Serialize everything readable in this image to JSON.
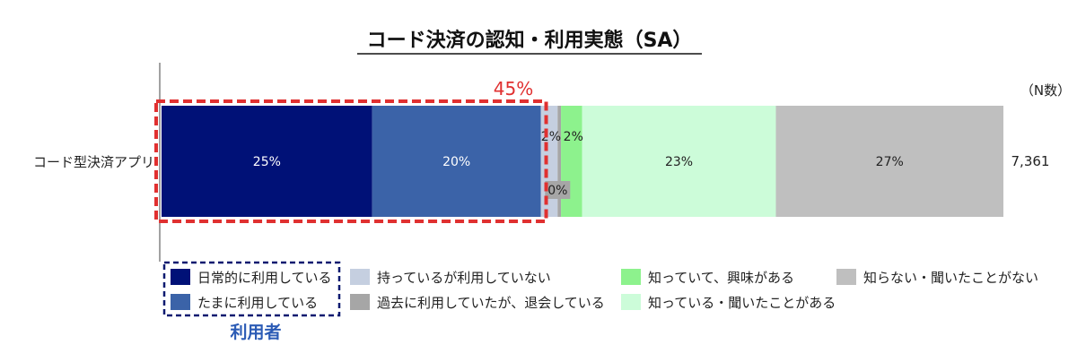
{
  "chart_data": {
    "type": "bar",
    "orientation": "horizontal",
    "stacked": true,
    "title": "コード決済の認知・利用実態（SA）",
    "n_label": "（N数）",
    "categories": [
      "コード型決済アプリ"
    ],
    "n_values": [
      "7,361"
    ],
    "xlim": [
      0,
      100
    ],
    "series": [
      {
        "name": "日常的に利用している",
        "values": [
          25
        ],
        "label": "25%",
        "color": "#001177"
      },
      {
        "name": "たまに利用している",
        "values": [
          20
        ],
        "label": "20%",
        "color": "#3b63a8"
      },
      {
        "name": "持っているが利用していない",
        "values": [
          2
        ],
        "label": "2%",
        "color": "#c5cfe0"
      },
      {
        "name": "過去に利用していたが、退会している",
        "values": [
          0.4
        ],
        "label": "0%",
        "color": "#a6a6a6"
      },
      {
        "name": "知っていて、興味がある",
        "values": [
          2.5
        ],
        "label": "2%",
        "color": "#8df28d"
      },
      {
        "name": "知っている・聞いたことがある",
        "values": [
          23
        ],
        "label": "23%",
        "color": "#ccfcd9"
      },
      {
        "name": "知らない・聞いたことがない",
        "values": [
          27
        ],
        "label": "27%",
        "color": "#bfbfbf"
      }
    ],
    "highlight": {
      "label": "45%",
      "group_label": "利用者",
      "series": [
        0,
        1
      ]
    },
    "grid": false
  }
}
